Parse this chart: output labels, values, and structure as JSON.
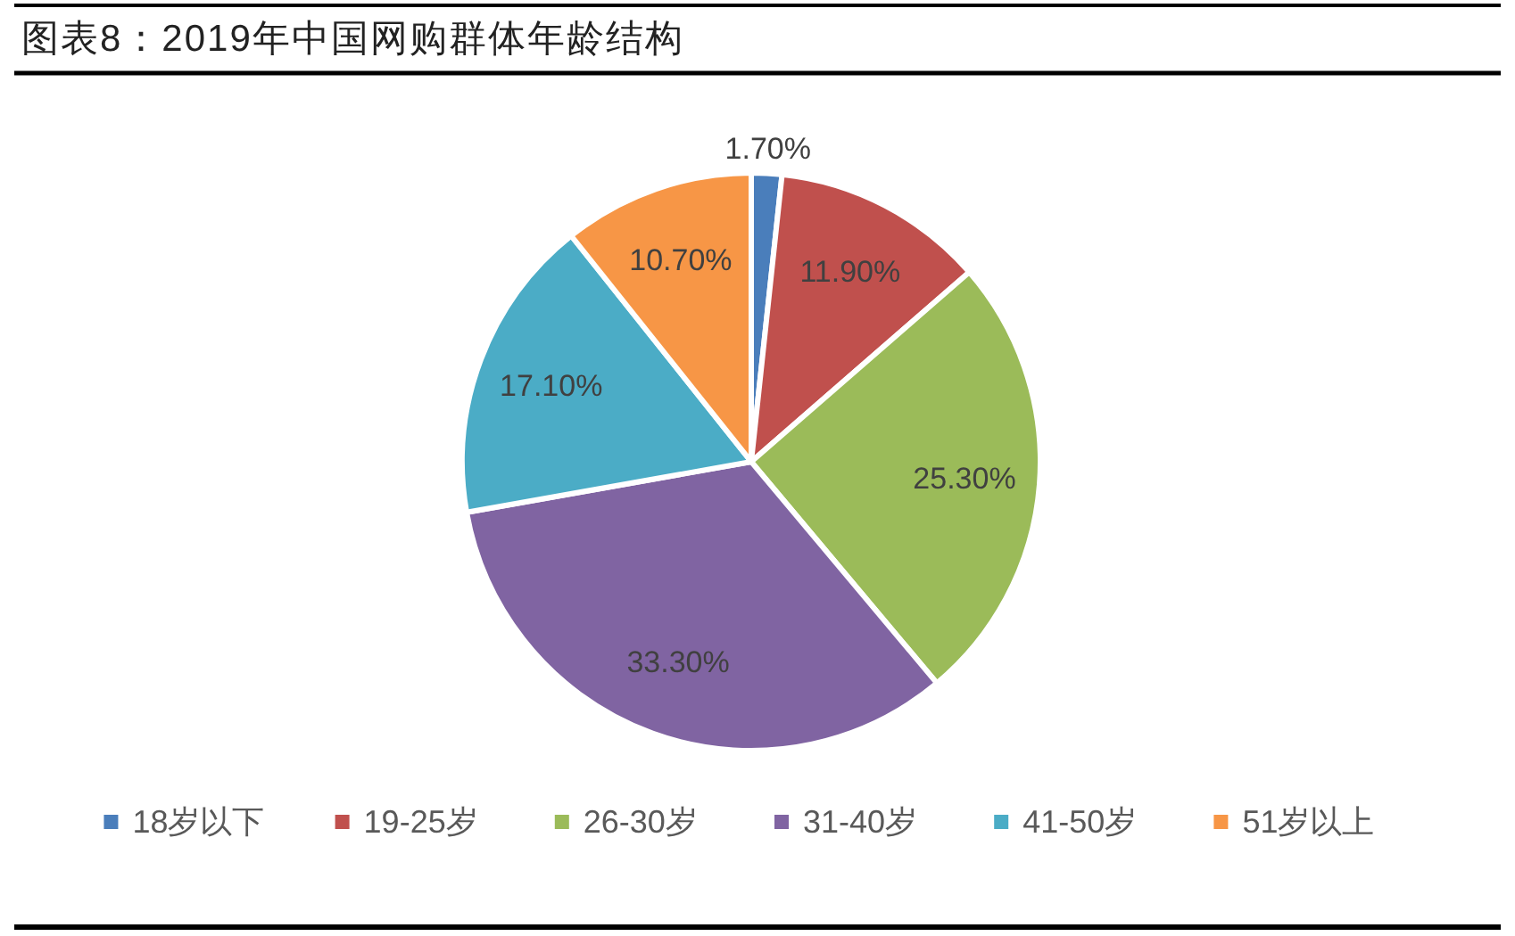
{
  "chart_data": {
    "type": "pie",
    "title": "图表8：2019年中国网购群体年龄结构",
    "categories": [
      "18岁以下",
      "19-25岁",
      "26-30岁",
      "31-40岁",
      "41-50岁",
      "51岁以上"
    ],
    "values": [
      1.7,
      11.9,
      25.3,
      33.3,
      17.1,
      10.7
    ],
    "colors": [
      "#4a7ebb",
      "#c0504d",
      "#9bbb59",
      "#8064a2",
      "#4bacc6",
      "#f79646"
    ],
    "value_labels": [
      "1.70%",
      "11.90%",
      "25.30%",
      "33.30%",
      "17.10%",
      "10.70%"
    ],
    "legend": "bottom"
  }
}
